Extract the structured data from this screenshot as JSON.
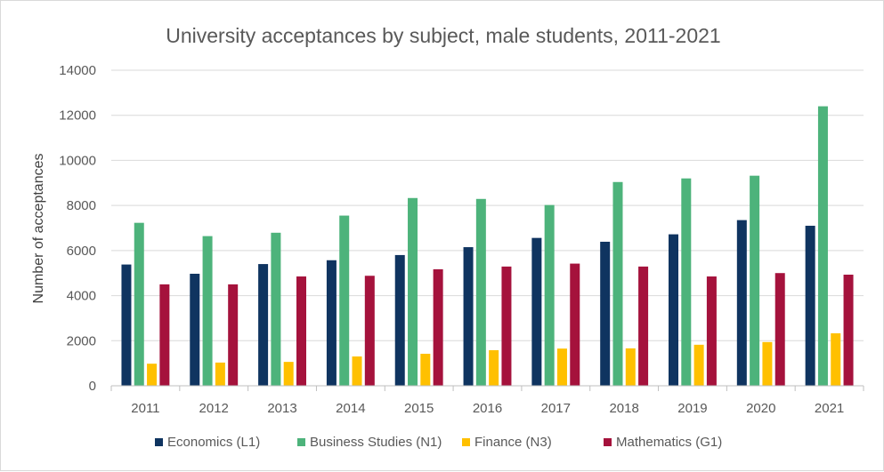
{
  "chart_data": {
    "type": "bar",
    "title": "University acceptances by subject, male students, 2011-2021",
    "xlabel": "",
    "ylabel": "Number of acceptances",
    "ylim": [
      0,
      14000
    ],
    "yticks": [
      0,
      2000,
      4000,
      6000,
      8000,
      10000,
      12000,
      14000
    ],
    "ytick_labels": [
      "0",
      "2000",
      "4000",
      "6000",
      "8000",
      "10000",
      "12000",
      "14000"
    ],
    "grid": true,
    "legend_position": "bottom",
    "categories": [
      "2011",
      "2012",
      "2013",
      "2014",
      "2015",
      "2016",
      "2017",
      "2018",
      "2019",
      "2020",
      "2021"
    ],
    "series": [
      {
        "name": "Economics (L1)",
        "color": "#0f3460",
        "values": [
          5380,
          4970,
          5400,
          5570,
          5800,
          6150,
          6560,
          6390,
          6720,
          7350,
          7100
        ]
      },
      {
        "name": "Business Studies (N1)",
        "color": "#4db37b",
        "values": [
          7230,
          6640,
          6790,
          7550,
          8330,
          8290,
          8020,
          9040,
          9200,
          9320,
          12400
        ]
      },
      {
        "name": "Finance (N3)",
        "color": "#ffc000",
        "values": [
          980,
          1030,
          1060,
          1300,
          1420,
          1580,
          1650,
          1660,
          1820,
          1940,
          2330
        ]
      },
      {
        "name": "Mathematics (G1)",
        "color": "#a5123c",
        "values": [
          4500,
          4500,
          4850,
          4880,
          5170,
          5290,
          5420,
          5290,
          4850,
          5000,
          4930
        ]
      }
    ]
  }
}
